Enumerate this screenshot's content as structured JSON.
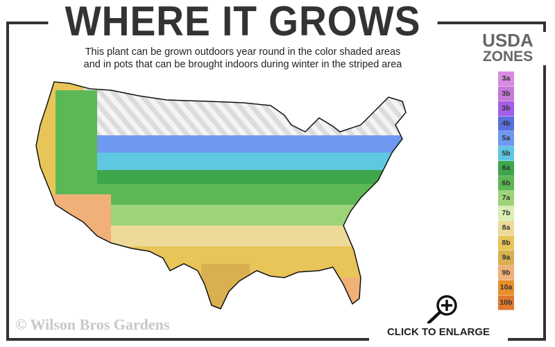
{
  "title": "WHERE IT GROWS",
  "subtitle_line1": "This plant can be grown outdoors year round in the color shaded areas",
  "subtitle_line2": "and in pots that can be brought indoors during winter in the striped area",
  "legend": {
    "title_line1": "USDA",
    "title_line2": "ZONES",
    "zones": [
      {
        "label": "3a",
        "color": "#d98be0"
      },
      {
        "label": "3b",
        "color": "#c67ad8"
      },
      {
        "label": "3b",
        "color": "#a45ee8"
      },
      {
        "label": "4b",
        "color": "#5a6fe0"
      },
      {
        "label": "5a",
        "color": "#6f99f0"
      },
      {
        "label": "5b",
        "color": "#5ec8e0"
      },
      {
        "label": "6a",
        "color": "#3da64a"
      },
      {
        "label": "6b",
        "color": "#5cb855"
      },
      {
        "label": "7a",
        "color": "#9dd47a"
      },
      {
        "label": "7b",
        "color": "#dbeeb4"
      },
      {
        "label": "8a",
        "color": "#eeda98"
      },
      {
        "label": "8b",
        "color": "#e8c558"
      },
      {
        "label": "9a",
        "color": "#d8b050"
      },
      {
        "label": "9b",
        "color": "#f0b078"
      },
      {
        "label": "10a",
        "color": "#e8902e"
      },
      {
        "label": "10b",
        "color": "#e07a2c"
      }
    ]
  },
  "copyright": "© Wilson Bros Gardens",
  "enlarge_label": "CLICK TO ENLARGE",
  "icons": {
    "enlarge": "magnifier-plus-icon"
  }
}
